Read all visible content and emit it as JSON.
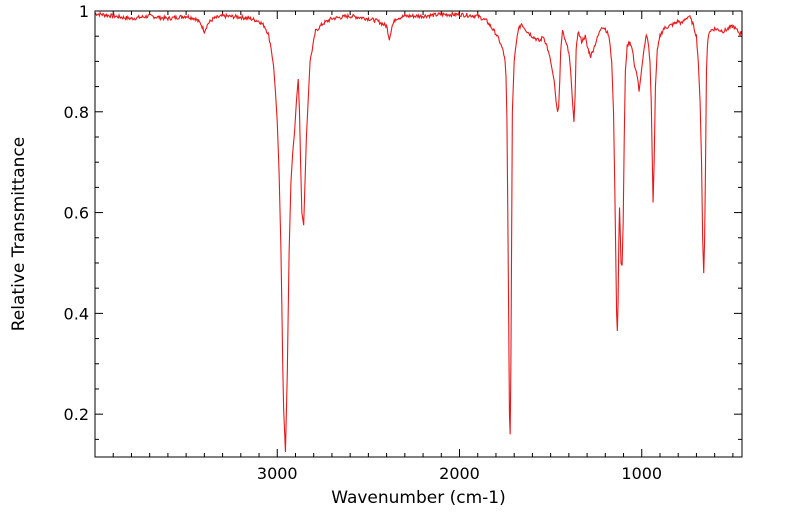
{
  "chart_data": {
    "type": "line",
    "xlabel": "Wavenumber (cm-1)",
    "ylabel": "Relative Transmittance",
    "x_reversed": true,
    "xlim": [
      4000,
      450
    ],
    "ylim": [
      0.115,
      1.0
    ],
    "x_ticks": [
      3000,
      2000,
      1000
    ],
    "x_tick_labels": [
      "3000",
      "2000",
      "1000"
    ],
    "y_ticks": [
      0.2,
      0.4,
      0.6,
      0.8,
      1.0
    ],
    "y_tick_labels": [
      "0.2",
      "0.4",
      "0.6",
      "0.8",
      "1"
    ],
    "grid": false,
    "line_color": "#e8191a",
    "series": [
      {
        "x": [
          4000,
          3900,
          3800,
          3700,
          3600,
          3500,
          3450,
          3420,
          3400,
          3380,
          3350,
          3300,
          3200,
          3150,
          3100,
          3070,
          3050,
          3035,
          3020,
          3010,
          3000,
          2990,
          2980,
          2975,
          2970,
          2965,
          2955,
          2945,
          2935,
          2925,
          2915,
          2905,
          2895,
          2885,
          2878,
          2872,
          2865,
          2855,
          2840,
          2820,
          2790,
          2750,
          2700,
          2600,
          2500,
          2450,
          2400,
          2385,
          2370,
          2350,
          2300,
          2200,
          2100,
          2000,
          1900,
          1850,
          1820,
          1800,
          1780,
          1760,
          1750,
          1745,
          1740,
          1735,
          1730,
          1726,
          1722,
          1718,
          1714,
          1710,
          1700,
          1690,
          1680,
          1660,
          1630,
          1600,
          1560,
          1540,
          1520,
          1500,
          1480,
          1470,
          1462,
          1456,
          1450,
          1445,
          1435,
          1420,
          1400,
          1390,
          1380,
          1372,
          1366,
          1360,
          1350,
          1330,
          1310,
          1300,
          1290,
          1280,
          1260,
          1240,
          1220,
          1200,
          1180,
          1165,
          1155,
          1148,
          1142,
          1138,
          1134,
          1130,
          1126,
          1122,
          1118,
          1114,
          1108,
          1102,
          1096,
          1090,
          1080,
          1065,
          1050,
          1040,
          1030,
          1020,
          1015,
          1005,
          990,
          975,
          965,
          955,
          948,
          942,
          938,
          932,
          925,
          915,
          900,
          880,
          850,
          820,
          800,
          780,
          760,
          740,
          720,
          700,
          690,
          680,
          672,
          666,
          660,
          655,
          650,
          645,
          640,
          630,
          600,
          550,
          500,
          460,
          450
        ],
        "y": [
          0.995,
          0.99,
          0.985,
          0.99,
          0.985,
          0.99,
          0.985,
          0.975,
          0.96,
          0.975,
          0.985,
          0.99,
          0.988,
          0.985,
          0.98,
          0.97,
          0.955,
          0.93,
          0.89,
          0.84,
          0.78,
          0.68,
          0.53,
          0.42,
          0.3,
          0.21,
          0.125,
          0.28,
          0.52,
          0.66,
          0.72,
          0.76,
          0.82,
          0.865,
          0.8,
          0.7,
          0.6,
          0.575,
          0.75,
          0.9,
          0.96,
          0.975,
          0.985,
          0.99,
          0.985,
          0.98,
          0.97,
          0.945,
          0.97,
          0.985,
          0.99,
          0.99,
          0.993,
          0.993,
          0.99,
          0.98,
          0.965,
          0.955,
          0.94,
          0.92,
          0.9,
          0.87,
          0.79,
          0.6,
          0.38,
          0.2,
          0.16,
          0.3,
          0.55,
          0.8,
          0.9,
          0.93,
          0.96,
          0.975,
          0.96,
          0.95,
          0.94,
          0.95,
          0.93,
          0.9,
          0.86,
          0.82,
          0.8,
          0.81,
          0.86,
          0.92,
          0.96,
          0.94,
          0.92,
          0.88,
          0.82,
          0.78,
          0.83,
          0.92,
          0.96,
          0.94,
          0.95,
          0.93,
          0.92,
          0.91,
          0.93,
          0.95,
          0.97,
          0.965,
          0.95,
          0.9,
          0.8,
          0.65,
          0.5,
          0.4,
          0.365,
          0.42,
          0.54,
          0.61,
          0.56,
          0.5,
          0.495,
          0.58,
          0.75,
          0.88,
          0.93,
          0.94,
          0.92,
          0.89,
          0.88,
          0.86,
          0.84,
          0.87,
          0.92,
          0.95,
          0.94,
          0.9,
          0.82,
          0.7,
          0.62,
          0.7,
          0.85,
          0.92,
          0.95,
          0.965,
          0.97,
          0.975,
          0.98,
          0.975,
          0.985,
          0.99,
          0.975,
          0.95,
          0.9,
          0.82,
          0.7,
          0.55,
          0.48,
          0.55,
          0.7,
          0.88,
          0.93,
          0.96,
          0.965,
          0.96,
          0.97,
          0.955,
          0.96
        ]
      }
    ]
  }
}
